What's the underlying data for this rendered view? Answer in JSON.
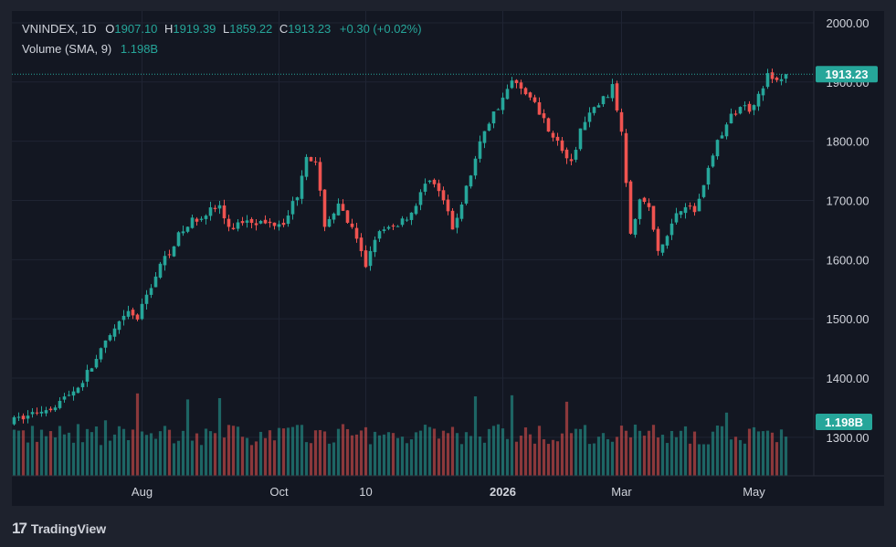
{
  "legend": {
    "symbol": "VNINDEX",
    "interval": "1D",
    "open_label": "O",
    "open": "1907.10",
    "high_label": "H",
    "high": "1919.39",
    "low_label": "L",
    "low": "1859.22",
    "close_label": "C",
    "close": "1913.23",
    "change": "+0.30 (+0.02%)",
    "volume_label": "Volume (SMA, 9)",
    "volume_value": "1.198B"
  },
  "price_badge": "1913.23",
  "volume_badge": "1.198B",
  "footer": {
    "brand": "TradingView",
    "logo_text": "17"
  },
  "colors": {
    "up": "#26a69a",
    "down": "#ef5350",
    "background": "#131722",
    "frame": "#1e222d",
    "text": "#d1d4dc",
    "grid": "#1f2433"
  },
  "chart_data": {
    "type": "candlestick",
    "y_axis": {
      "range": [
        1235,
        2020
      ],
      "ticks": [
        2000,
        1900,
        1800,
        1700,
        1600,
        1500,
        1400,
        1300
      ],
      "tick_labels": [
        "2000.00",
        "1900.00",
        "1800.00",
        "1700.00",
        "1600.00",
        "1500.00",
        "1400.00",
        "1300.00"
      ],
      "position": "right"
    },
    "x_axis": {
      "labels": [
        {
          "text": "Aug",
          "index": 28
        },
        {
          "text": "Oct",
          "index": 58
        },
        {
          "text": "10",
          "index": 77
        },
        {
          "text": "2026",
          "index": 107
        },
        {
          "text": "Mar",
          "index": 133
        },
        {
          "text": "May",
          "index": 162
        }
      ],
      "bold": [
        "2026"
      ]
    },
    "last_close": 1913.23,
    "candle_count": 170,
    "keypoints": [
      [
        0,
        1325
      ],
      [
        5,
        1340
      ],
      [
        10,
        1355
      ],
      [
        15,
        1385
      ],
      [
        18,
        1420
      ],
      [
        22,
        1470
      ],
      [
        26,
        1510
      ],
      [
        28,
        1500
      ],
      [
        30,
        1540
      ],
      [
        33,
        1590
      ],
      [
        37,
        1640
      ],
      [
        40,
        1665
      ],
      [
        43,
        1680
      ],
      [
        46,
        1690
      ],
      [
        48,
        1650
      ],
      [
        52,
        1670
      ],
      [
        56,
        1660
      ],
      [
        60,
        1665
      ],
      [
        63,
        1710
      ],
      [
        65,
        1780
      ],
      [
        67,
        1760
      ],
      [
        69,
        1660
      ],
      [
        72,
        1690
      ],
      [
        75,
        1650
      ],
      [
        78,
        1590
      ],
      [
        80,
        1640
      ],
      [
        84,
        1655
      ],
      [
        88,
        1680
      ],
      [
        92,
        1740
      ],
      [
        95,
        1700
      ],
      [
        97,
        1650
      ],
      [
        100,
        1720
      ],
      [
        102,
        1770
      ],
      [
        104,
        1820
      ],
      [
        107,
        1860
      ],
      [
        110,
        1900
      ],
      [
        113,
        1885
      ],
      [
        116,
        1850
      ],
      [
        119,
        1810
      ],
      [
        123,
        1760
      ],
      [
        125,
        1820
      ],
      [
        128,
        1855
      ],
      [
        131,
        1880
      ],
      [
        132,
        1890
      ],
      [
        134,
        1820
      ],
      [
        136,
        1650
      ],
      [
        138,
        1700
      ],
      [
        140,
        1690
      ],
      [
        142,
        1610
      ],
      [
        144,
        1640
      ],
      [
        146,
        1680
      ],
      [
        148,
        1695
      ],
      [
        150,
        1680
      ],
      [
        152,
        1730
      ],
      [
        155,
        1800
      ],
      [
        158,
        1840
      ],
      [
        160,
        1860
      ],
      [
        162,
        1855
      ],
      [
        164,
        1880
      ],
      [
        166,
        1910
      ],
      [
        168,
        1900
      ],
      [
        170,
        1913.23
      ]
    ],
    "volume_avg": 1.198
  }
}
